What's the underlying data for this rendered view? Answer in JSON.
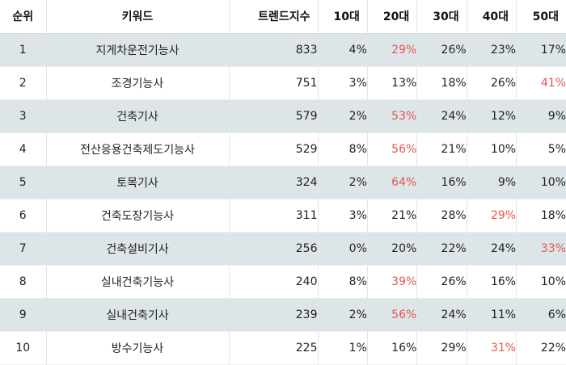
{
  "colors": {
    "highlight": "#e4574f",
    "stripe": "#dde5e9",
    "text": "#222222"
  },
  "headers": {
    "rank": "순위",
    "keyword": "키워드",
    "trend": "트렌드지수",
    "age10": "10대",
    "age20": "20대",
    "age30": "30대",
    "age40": "40대",
    "age50": "50대"
  },
  "rows": [
    {
      "rank": "1",
      "keyword": "지게차운전기능사",
      "trend": "833",
      "age10": "4%",
      "age20": "29%",
      "age30": "26%",
      "age40": "23%",
      "age50": "17%",
      "highlight": "age20"
    },
    {
      "rank": "2",
      "keyword": "조경기능사",
      "trend": "751",
      "age10": "3%",
      "age20": "13%",
      "age30": "18%",
      "age40": "26%",
      "age50": "41%",
      "highlight": "age50"
    },
    {
      "rank": "3",
      "keyword": "건축기사",
      "trend": "579",
      "age10": "2%",
      "age20": "53%",
      "age30": "24%",
      "age40": "12%",
      "age50": "9%",
      "highlight": "age20"
    },
    {
      "rank": "4",
      "keyword": "전산응용건축제도기능사",
      "trend": "529",
      "age10": "8%",
      "age20": "56%",
      "age30": "21%",
      "age40": "10%",
      "age50": "5%",
      "highlight": "age20"
    },
    {
      "rank": "5",
      "keyword": "토목기사",
      "trend": "324",
      "age10": "2%",
      "age20": "64%",
      "age30": "16%",
      "age40": "9%",
      "age50": "10%",
      "highlight": "age20"
    },
    {
      "rank": "6",
      "keyword": "건축도장기능사",
      "trend": "311",
      "age10": "3%",
      "age20": "21%",
      "age30": "28%",
      "age40": "29%",
      "age50": "18%",
      "highlight": "age40"
    },
    {
      "rank": "7",
      "keyword": "건축설비기사",
      "trend": "256",
      "age10": "0%",
      "age20": "20%",
      "age30": "22%",
      "age40": "24%",
      "age50": "33%",
      "highlight": "age50"
    },
    {
      "rank": "8",
      "keyword": "실내건축기능사",
      "trend": "240",
      "age10": "8%",
      "age20": "39%",
      "age30": "26%",
      "age40": "16%",
      "age50": "10%",
      "highlight": "age20"
    },
    {
      "rank": "9",
      "keyword": "실내건축기사",
      "trend": "239",
      "age10": "2%",
      "age20": "56%",
      "age30": "24%",
      "age40": "11%",
      "age50": "6%",
      "highlight": "age20"
    },
    {
      "rank": "10",
      "keyword": "방수기능사",
      "trend": "225",
      "age10": "1%",
      "age20": "16%",
      "age30": "29%",
      "age40": "31%",
      "age50": "22%",
      "highlight": "age40"
    }
  ]
}
